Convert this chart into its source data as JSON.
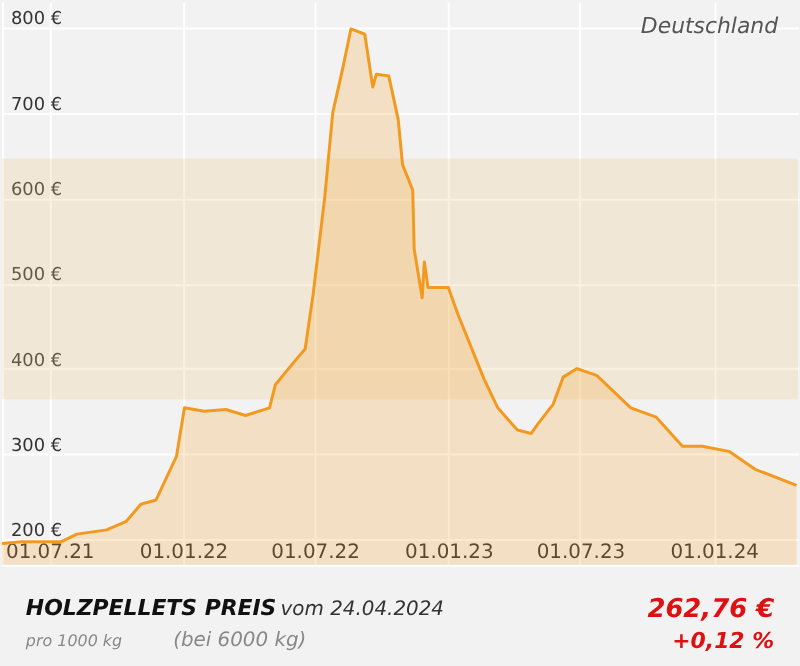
{
  "chart_data": {
    "type": "area",
    "title": "HOLZPELLETS PREIS",
    "subtitle": "vom 24.04.2024",
    "annotations": [
      "Deutschland",
      "pro 1000 kg",
      "(bei 6000 kg)",
      "262,76 €",
      "+0,12 %"
    ],
    "x": [
      "2021-04-27",
      "2021-05-24",
      "2021-07-17",
      "2021-08-08",
      "2021-09-18",
      "2021-10-15",
      "2021-11-04",
      "2021-11-25",
      "2021-12-23",
      "2022-01-03",
      "2022-01-30",
      "2022-03-01",
      "2022-03-28",
      "2022-04-30",
      "2022-05-08",
      "2022-06-02",
      "2022-06-18",
      "2022-06-29",
      "2022-07-15",
      "2022-07-26",
      "2022-08-09",
      "2022-08-20",
      "2022-09-08",
      "2022-09-19",
      "2022-09-24",
      "2022-10-11",
      "2022-10-24",
      "2022-10-30",
      "2022-11-13",
      "2022-11-15",
      "2022-11-26",
      "2022-11-29",
      "2022-12-04",
      "2023-01-01",
      "2023-01-14",
      "2023-02-19",
      "2023-03-10",
      "2023-04-06",
      "2023-04-25",
      "2023-05-04",
      "2023-05-25",
      "2023-06-08",
      "2023-06-27",
      "2023-07-24",
      "2023-09-09",
      "2023-10-14",
      "2023-11-19",
      "2023-12-16",
      "2024-01-22",
      "2024-02-27",
      "2024-04-24"
    ],
    "series": [
      {
        "color": "#f29a1f",
        "values": [
          195,
          197,
          197,
          206,
          211,
          221,
          241,
          246,
          297,
          354,
          350,
          352,
          345,
          354,
          381,
          407,
          423,
          487,
          601,
          700,
          753,
          798,
          792,
          730,
          745,
          743,
          692,
          639,
          609,
          540,
          483,
          525,
          495,
          495,
          464,
          388,
          354,
          328,
          324,
          335,
          358,
          390,
          400,
          392,
          354,
          343,
          309,
          309,
          303,
          282,
          263
        ]
      }
    ],
    "xlim": [
      "2021-04-27",
      "2024-04-26"
    ],
    "xticks": [
      {
        "value": "2021-07-01",
        "label": "01.07.21"
      },
      {
        "value": "2022-01-01",
        "label": "01.01.22"
      },
      {
        "value": "2022-07-01",
        "label": "01.07.22"
      },
      {
        "value": "2023-01-01",
        "label": "01.01.23"
      },
      {
        "value": "2023-07-01",
        "label": "01.07.23"
      },
      {
        "value": "2024-01-01",
        "label": "01.01.24"
      }
    ],
    "ylim": [
      170,
      830
    ],
    "yticks": [
      {
        "value": 200,
        "label": "200 €"
      },
      {
        "value": 300,
        "label": "300 €"
      },
      {
        "value": 400,
        "label": "400 €"
      },
      {
        "value": 500,
        "label": "500 €"
      },
      {
        "value": 600,
        "label": "600 €"
      },
      {
        "value": 700,
        "label": "700 €"
      },
      {
        "value": 800,
        "label": "800 €"
      }
    ],
    "bands": [
      {
        "axis": "y",
        "from": 364,
        "to": 646,
        "color": "#f0c888"
      }
    ],
    "grid": true
  }
}
